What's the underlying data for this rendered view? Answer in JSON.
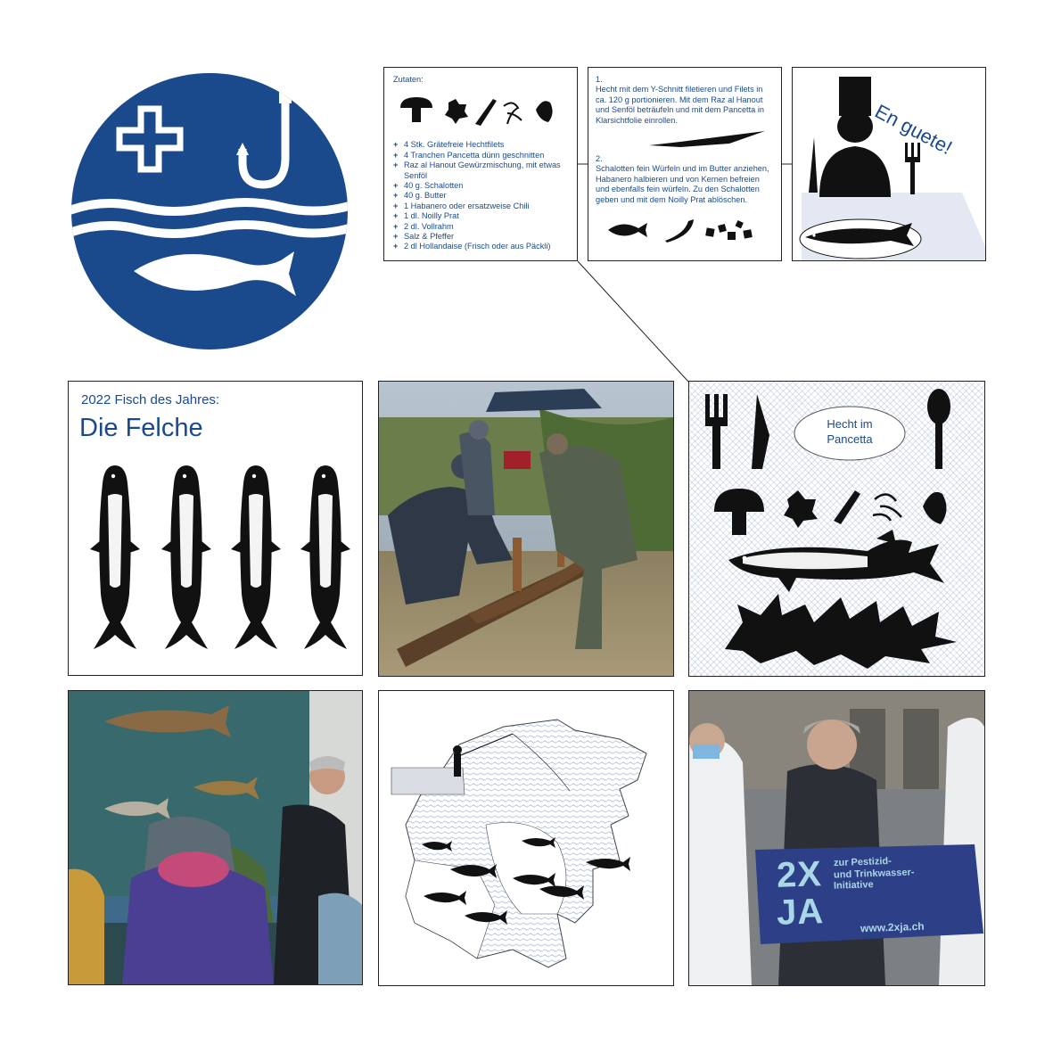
{
  "colors": {
    "brand": "#1a4a8c",
    "ink": "#111111",
    "hatch": "#d6deef"
  },
  "logo": {
    "icons": [
      "cross-icon",
      "fishhook-icon",
      "waves-icon",
      "fish-icon"
    ]
  },
  "recipe_ingredients": {
    "heading": "Zutaten:",
    "items": [
      "4 Stk. Grätefreie Hechtfilets",
      "4 Tranchen Pancetta dünn geschnitten",
      "Raz al Hanout Gewürzmischung, mit etwas Senföl",
      "40 g. Schalotten",
      "40 g. Butter",
      "1 Habanero oder ersatzweise Chili",
      "1 dl. Noilly Prat",
      "2 dl. Vollrahm",
      "Salz & Pfeffer",
      "2 dl Hollandaise (Frisch oder aus Päckli)"
    ]
  },
  "recipe_steps": {
    "step1_num": "1.",
    "step1": "Hecht mit dem Y-Schnitt filetieren und Filets in ca. 120 g portionieren. Mit dem Raz al Hanout und Senföl beträufeln und mit dem Pancetta in Klarsichtfolie einrollen.",
    "step2_num": "2.",
    "step2": "Schalotten fein Würfeln und im Butter anziehen, Habanero halbieren und von Kernen befreien und ebenfalls fein würfeln. Zu den Schalotten geben und mit dem Noilly Prat ablöschen."
  },
  "chef_panel": {
    "greeting": "En guete!"
  },
  "fish_of_year": {
    "subtitle": "2022 Fisch des Jahres:",
    "title": "Die Felche"
  },
  "pike_panel": {
    "label_line1": "Hecht im",
    "label_line2": "Pancetta"
  },
  "banner": {
    "big_line1": "2X",
    "big_line2": "JA",
    "small_line1": "zur Pestizid-",
    "small_line2": "und Trinkwasser-",
    "small_line3": "Initiative",
    "url": "www.2xja.ch"
  }
}
